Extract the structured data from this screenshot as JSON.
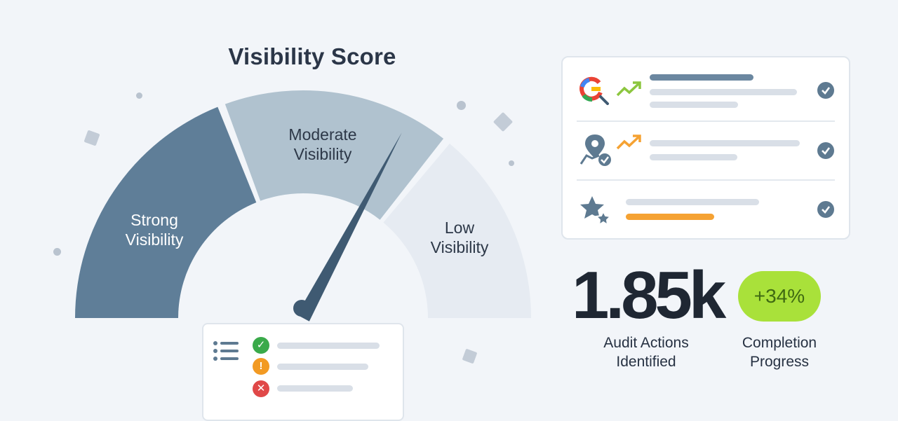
{
  "title": "Visibility Score",
  "gauge": {
    "segments": [
      {
        "label_line1": "Strong",
        "label_line2": "Visibility",
        "color": "#5f7e98",
        "text_color": "#ffffff"
      },
      {
        "label_line1": "Moderate",
        "label_line2": "Visibility",
        "color": "#b0c2cf",
        "text_color": "#2d3848"
      },
      {
        "label_line1": "Low",
        "label_line2": "Visibility",
        "color": "#e6ebf2",
        "text_color": "#2d3848"
      }
    ],
    "needle_color": "#3f5a72"
  },
  "checklist_card": {
    "rows": [
      {
        "icon": "google-search-icon",
        "trend": "trend-up-green-icon",
        "status": "checked"
      },
      {
        "icon": "map-pin-check-icon",
        "trend": "trend-up-orange-icon",
        "status": "checked"
      },
      {
        "icon": "star-rating-icon",
        "accent": "#f5a233",
        "status": "checked"
      }
    ]
  },
  "stats": {
    "audit_actions_value": "1.85k",
    "audit_actions_label_line1": "Audit Actions",
    "audit_actions_label_line2": "Identified",
    "completion_change": "+34%",
    "completion_label_line1": "Completion",
    "completion_label_line2": "Progress"
  },
  "action_list": {
    "icon": "list-icon",
    "items": [
      {
        "status": "success",
        "symbol": "✓",
        "color": "#3aaa4a"
      },
      {
        "status": "warning",
        "symbol": "!",
        "color": "#f29a23"
      },
      {
        "status": "error",
        "symbol": "✕",
        "color": "#e04848"
      }
    ]
  }
}
